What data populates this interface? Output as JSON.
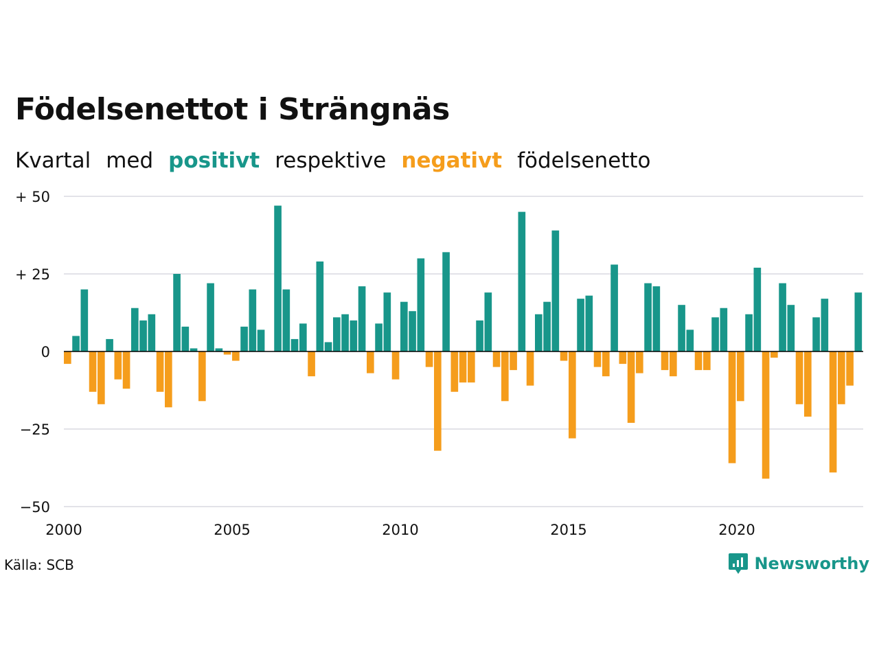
{
  "header": {
    "title": "Födelsenettot i Strängnäs",
    "subtitle": {
      "w1": "Kvartal",
      "w2": "med",
      "positive": "positivt",
      "w3": "respektive",
      "negative": "negativt",
      "w4": "födelsenetto"
    }
  },
  "footer": {
    "source": "Källa: SCB",
    "brand": "Newsworthy",
    "brand_icon": "newsworthy-logo-icon"
  },
  "colors": {
    "positive": "#18968a",
    "negative": "#f59d1c",
    "grid": "#e2e2e8",
    "text": "#111111"
  },
  "chart_data": {
    "type": "bar",
    "title": "Födelsenettot i Strängnäs",
    "x_start": "2000 Q1",
    "quarters_per_year": 4,
    "values": [
      -4,
      5,
      20,
      -13,
      -17,
      4,
      -9,
      -12,
      14,
      10,
      12,
      -13,
      -18,
      25,
      8,
      1,
      -16,
      22,
      1,
      -1,
      -3,
      8,
      20,
      7,
      0,
      47,
      20,
      4,
      9,
      -8,
      29,
      3,
      11,
      12,
      10,
      21,
      -7,
      9,
      19,
      -9,
      16,
      13,
      30,
      -5,
      -32,
      32,
      -13,
      -10,
      -10,
      10,
      19,
      -5,
      -16,
      -6,
      45,
      -11,
      12,
      16,
      39,
      -3,
      -28,
      17,
      18,
      -5,
      -8,
      28,
      -4,
      -23,
      -7,
      22,
      21,
      -6,
      -8,
      15,
      7,
      -6,
      -6,
      11,
      14,
      -36,
      -16,
      12,
      27,
      -41,
      -2,
      22,
      15,
      -17,
      -21,
      11,
      17,
      -39,
      -17,
      -11,
      19
    ],
    "x_ticks": [
      "2000",
      "2005",
      "2010",
      "2015",
      "2020"
    ],
    "y_ticks": [
      {
        "value": 50,
        "label": "+ 50"
      },
      {
        "value": 25,
        "label": "+ 25"
      },
      {
        "value": 0,
        "label": "0"
      },
      {
        "value": -25,
        "label": "−25"
      },
      {
        "value": -50,
        "label": "−50"
      }
    ],
    "ylim": [
      -50,
      50
    ],
    "grid": true,
    "legend": "in subtitle"
  }
}
